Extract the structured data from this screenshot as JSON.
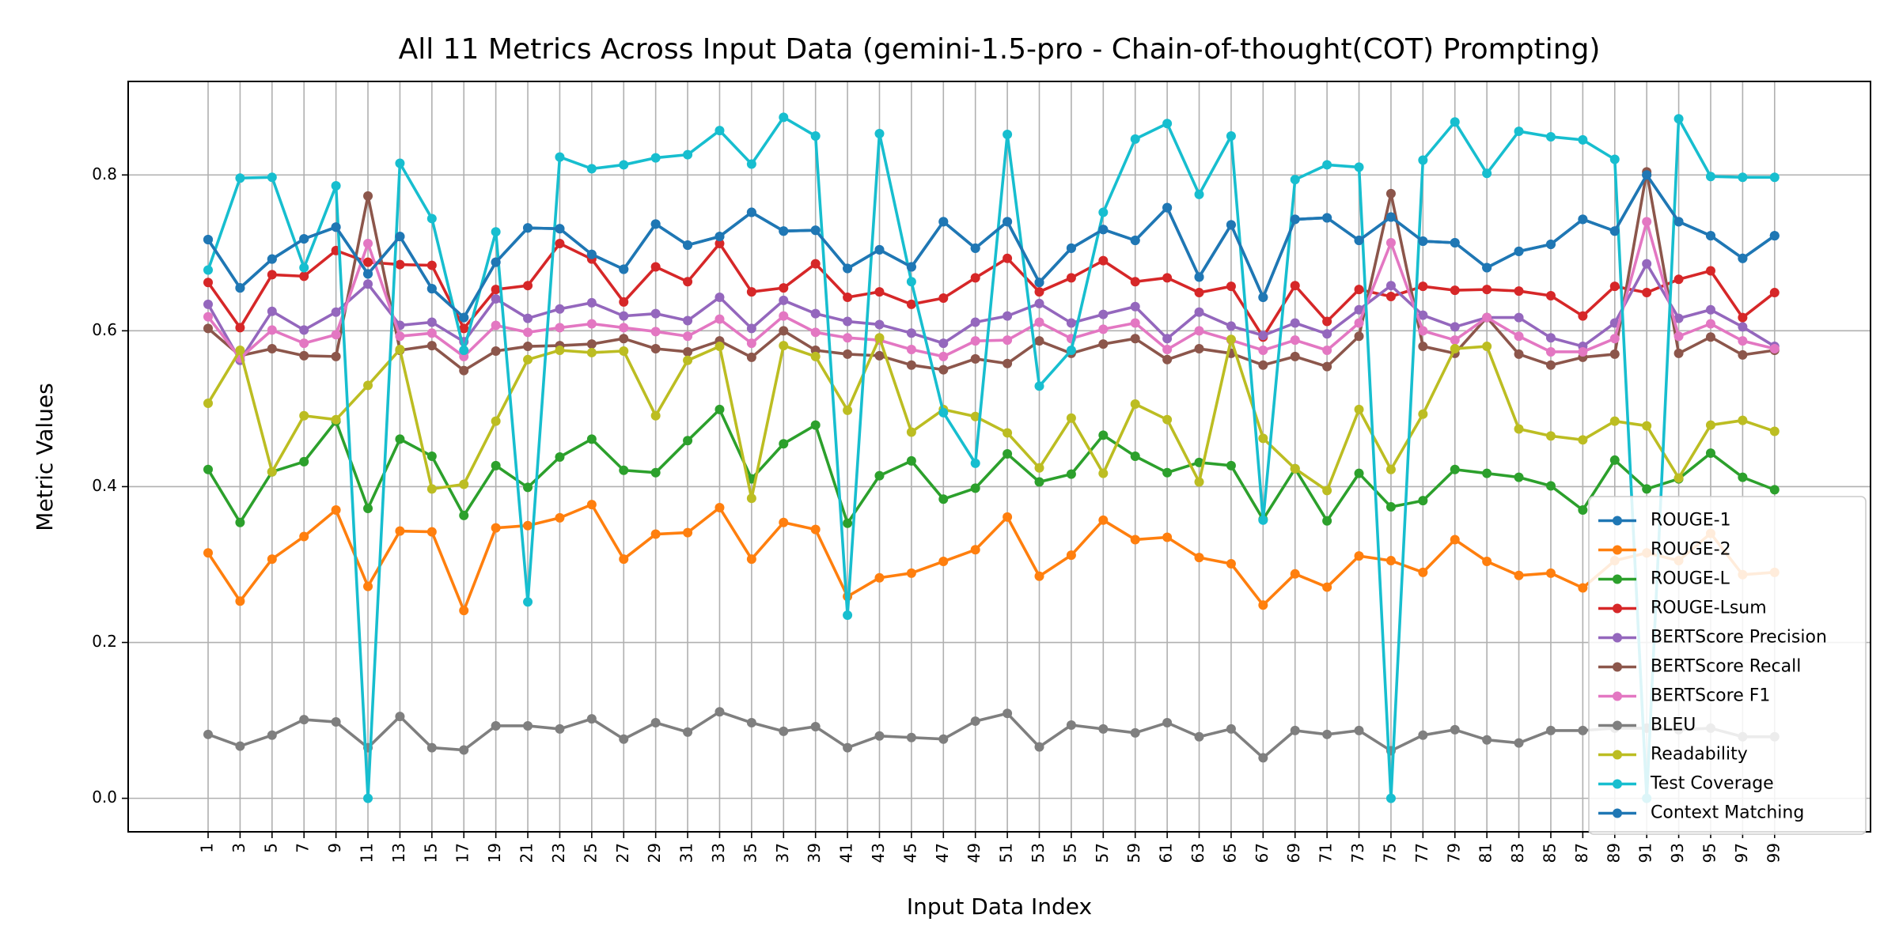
{
  "chart_data": {
    "type": "line",
    "title": "All 11 Metrics Across Input Data (gemini-1.5-pro - Chain-of-thought(COT) Prompting)",
    "xlabel": "Input Data Index",
    "ylabel": "Metric Values",
    "x": [
      1,
      3,
      5,
      7,
      9,
      11,
      13,
      15,
      17,
      19,
      21,
      23,
      25,
      27,
      29,
      31,
      33,
      35,
      37,
      39,
      41,
      43,
      45,
      47,
      49,
      51,
      53,
      55,
      57,
      59,
      61,
      63,
      65,
      67,
      69,
      71,
      73,
      75,
      77,
      79,
      81,
      83,
      85,
      87,
      89,
      91,
      93,
      95,
      97,
      99
    ],
    "xlim": [
      -4,
      105
    ],
    "ylim": [
      -0.043,
      0.92
    ],
    "yticks": [
      0.0,
      0.2,
      0.4,
      0.6,
      0.8
    ],
    "ytick_labels": [
      "0.0",
      "0.2",
      "0.4",
      "0.6",
      "0.8"
    ],
    "grid": true,
    "legend_position": "lower-right",
    "series": [
      {
        "name": "ROUGE-1",
        "color": "#1f77b4",
        "values": [
          0.717,
          0.655,
          0.692,
          0.718,
          0.733,
          0.673,
          0.721,
          0.654,
          0.617,
          0.688,
          0.732,
          0.731,
          0.698,
          0.679,
          0.737,
          0.71,
          0.721,
          0.752,
          0.728,
          0.729,
          0.68,
          0.704,
          0.682,
          0.74,
          0.706,
          0.74,
          0.662,
          0.706,
          0.73,
          0.716,
          0.758,
          0.669,
          0.736,
          0.643,
          0.743,
          0.745,
          0.716,
          0.746,
          0.715,
          0.713,
          0.681,
          0.702,
          0.711,
          0.743,
          0.728,
          0.8,
          0.74,
          0.722,
          0.693,
          0.722
        ]
      },
      {
        "name": "ROUGE-2",
        "color": "#ff7f0e",
        "values": [
          0.315,
          0.253,
          0.307,
          0.336,
          0.37,
          0.272,
          0.343,
          0.342,
          0.241,
          0.347,
          0.35,
          0.36,
          0.377,
          0.307,
          0.339,
          0.341,
          0.373,
          0.307,
          0.354,
          0.345,
          0.259,
          0.283,
          0.289,
          0.304,
          0.319,
          0.361,
          0.285,
          0.312,
          0.357,
          0.332,
          0.335,
          0.309,
          0.301,
          0.248,
          0.288,
          0.271,
          0.311,
          0.305,
          0.29,
          0.332,
          0.304,
          0.286,
          0.289,
          0.27,
          0.305,
          0.315,
          0.305,
          0.34,
          0.287,
          0.29
        ]
      },
      {
        "name": "ROUGE-L",
        "color": "#2ca02c",
        "values": [
          0.422,
          0.354,
          0.419,
          0.432,
          0.484,
          0.372,
          0.461,
          0.439,
          0.363,
          0.427,
          0.399,
          0.438,
          0.461,
          0.421,
          0.418,
          0.459,
          0.499,
          0.41,
          0.455,
          0.479,
          0.353,
          0.414,
          0.433,
          0.384,
          0.398,
          0.442,
          0.406,
          0.416,
          0.466,
          0.439,
          0.418,
          0.431,
          0.427,
          0.358,
          0.423,
          0.356,
          0.417,
          0.374,
          0.382,
          0.422,
          0.417,
          0.412,
          0.401,
          0.37,
          0.434,
          0.397,
          0.41,
          0.443,
          0.412,
          0.396
        ]
      },
      {
        "name": "ROUGE-Lsum",
        "color": "#d62728",
        "values": [
          0.662,
          0.604,
          0.672,
          0.67,
          0.703,
          0.688,
          0.685,
          0.684,
          0.603,
          0.653,
          0.658,
          0.712,
          0.692,
          0.637,
          0.682,
          0.663,
          0.712,
          0.65,
          0.655,
          0.686,
          0.643,
          0.65,
          0.634,
          0.642,
          0.668,
          0.693,
          0.65,
          0.668,
          0.69,
          0.663,
          0.668,
          0.649,
          0.657,
          0.592,
          0.658,
          0.612,
          0.653,
          0.644,
          0.657,
          0.652,
          0.653,
          0.651,
          0.645,
          0.619,
          0.657,
          0.649,
          0.666,
          0.677,
          0.617,
          0.649
        ]
      },
      {
        "name": "BERTScore Precision",
        "color": "#9467bd",
        "values": [
          0.634,
          0.562,
          0.625,
          0.601,
          0.624,
          0.66,
          0.607,
          0.611,
          0.586,
          0.641,
          0.616,
          0.628,
          0.636,
          0.619,
          0.622,
          0.613,
          0.643,
          0.603,
          0.639,
          0.622,
          0.612,
          0.608,
          0.597,
          0.584,
          0.611,
          0.619,
          0.635,
          0.61,
          0.621,
          0.631,
          0.59,
          0.624,
          0.606,
          0.594,
          0.61,
          0.596,
          0.627,
          0.658,
          0.62,
          0.605,
          0.617,
          0.617,
          0.591,
          0.58,
          0.61,
          0.686,
          0.616,
          0.627,
          0.605,
          0.58
        ]
      },
      {
        "name": "BERTScore Recall",
        "color": "#8c564b",
        "values": [
          0.603,
          0.568,
          0.577,
          0.568,
          0.567,
          0.773,
          0.575,
          0.581,
          0.549,
          0.574,
          0.58,
          0.581,
          0.583,
          0.59,
          0.577,
          0.573,
          0.587,
          0.566,
          0.6,
          0.575,
          0.57,
          0.568,
          0.556,
          0.55,
          0.564,
          0.558,
          0.587,
          0.571,
          0.583,
          0.59,
          0.563,
          0.577,
          0.571,
          0.556,
          0.567,
          0.554,
          0.593,
          0.776,
          0.58,
          0.571,
          0.617,
          0.57,
          0.556,
          0.566,
          0.57,
          0.804,
          0.571,
          0.592,
          0.569,
          0.575
        ]
      },
      {
        "name": "BERTScore F1",
        "color": "#e377c2",
        "values": [
          0.618,
          0.565,
          0.601,
          0.584,
          0.595,
          0.712,
          0.593,
          0.597,
          0.567,
          0.607,
          0.598,
          0.604,
          0.609,
          0.604,
          0.599,
          0.593,
          0.615,
          0.584,
          0.619,
          0.598,
          0.591,
          0.588,
          0.576,
          0.567,
          0.587,
          0.588,
          0.611,
          0.59,
          0.602,
          0.61,
          0.576,
          0.6,
          0.588,
          0.575,
          0.588,
          0.575,
          0.61,
          0.713,
          0.6,
          0.588,
          0.617,
          0.593,
          0.573,
          0.573,
          0.59,
          0.74,
          0.593,
          0.609,
          0.587,
          0.577
        ]
      },
      {
        "name": "BLEU",
        "color": "#7f7f7f",
        "values": [
          0.082,
          0.067,
          0.081,
          0.101,
          0.098,
          0.065,
          0.105,
          0.065,
          0.062,
          0.093,
          0.093,
          0.089,
          0.102,
          0.076,
          0.097,
          0.085,
          0.111,
          0.097,
          0.086,
          0.092,
          0.065,
          0.08,
          0.078,
          0.076,
          0.099,
          0.109,
          0.066,
          0.094,
          0.089,
          0.084,
          0.097,
          0.079,
          0.089,
          0.052,
          0.087,
          0.082,
          0.087,
          0.061,
          0.081,
          0.088,
          0.075,
          0.071,
          0.087,
          0.087,
          0.09,
          0.09,
          0.088,
          0.09,
          0.079,
          0.079
        ]
      },
      {
        "name": "Readability",
        "color": "#bcbd22",
        "values": [
          0.507,
          0.575,
          0.419,
          0.491,
          0.486,
          0.53,
          0.576,
          0.397,
          0.403,
          0.484,
          0.563,
          0.575,
          0.572,
          0.574,
          0.491,
          0.562,
          0.58,
          0.385,
          0.581,
          0.567,
          0.498,
          0.591,
          0.47,
          0.499,
          0.49,
          0.469,
          0.424,
          0.488,
          0.417,
          0.506,
          0.486,
          0.406,
          0.589,
          0.462,
          0.423,
          0.395,
          0.499,
          0.422,
          0.493,
          0.577,
          0.58,
          0.474,
          0.465,
          0.46,
          0.484,
          0.478,
          0.411,
          0.479,
          0.485,
          0.471
        ]
      },
      {
        "name": "Test Coverage",
        "color": "#17becf",
        "values": [
          0.678,
          0.796,
          0.797,
          0.681,
          0.786,
          0.0,
          0.815,
          0.744,
          0.575,
          0.727,
          0.252,
          0.823,
          0.808,
          0.813,
          0.822,
          0.826,
          0.857,
          0.814,
          0.874,
          0.85,
          0.235,
          0.853,
          0.663,
          0.495,
          0.43,
          0.852,
          0.529,
          0.575,
          0.752,
          0.846,
          0.866,
          0.775,
          0.85,
          0.357,
          0.794,
          0.813,
          0.81,
          0.0,
          0.819,
          0.868,
          0.802,
          0.856,
          0.849,
          0.845,
          0.82,
          0.0,
          0.872,
          0.798,
          0.797,
          0.797
        ]
      },
      {
        "name": "Context Matching",
        "color": "#1f77b4",
        "values": [
          0.717,
          0.655,
          0.692,
          0.718,
          0.733,
          0.673,
          0.721,
          0.654,
          0.617,
          0.688,
          0.732,
          0.731,
          0.698,
          0.679,
          0.737,
          0.71,
          0.721,
          0.752,
          0.728,
          0.729,
          0.68,
          0.704,
          0.682,
          0.74,
          0.706,
          0.74,
          0.662,
          0.706,
          0.73,
          0.716,
          0.758,
          0.669,
          0.736,
          0.643,
          0.743,
          0.745,
          0.716,
          0.746,
          0.715,
          0.713,
          0.681,
          0.702,
          0.711,
          0.743,
          0.728,
          0.8,
          0.74,
          0.722,
          0.693,
          0.722
        ]
      }
    ]
  }
}
